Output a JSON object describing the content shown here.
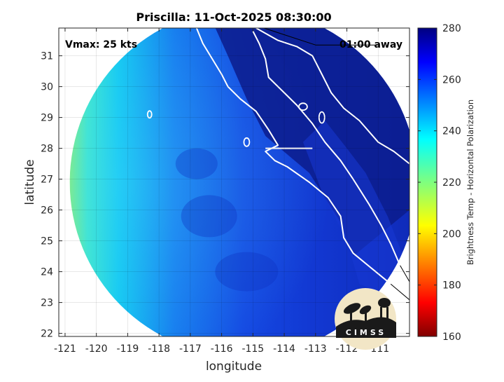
{
  "chart_data": {
    "type": "heatmap",
    "title": "Priscilla: 11-Oct-2025 08:30:00",
    "xlabel": "longitude",
    "ylabel": "latitude",
    "xlim": [
      -121.2,
      -110.0
    ],
    "ylim": [
      21.9,
      31.9
    ],
    "x_ticks": [
      -121,
      -120,
      -119,
      -118,
      -117,
      -116,
      -115,
      -114,
      -113,
      -112,
      -111
    ],
    "y_ticks": [
      22,
      23,
      24,
      25,
      26,
      27,
      28,
      29,
      30,
      31
    ],
    "grid": true,
    "annotations": {
      "vmax": "Vmax: 25 kts",
      "time_away": "01:00 away"
    },
    "colorbar": {
      "label": "Brightness Temp - Horizontal Polarization",
      "range": [
        160,
        280
      ],
      "ticks": [
        280,
        260,
        240,
        220,
        200,
        180,
        160
      ],
      "colormap": "jet",
      "placement": "right"
    },
    "swath": {
      "shape": "circle",
      "center": [
        -115.3,
        26.9
      ],
      "radius_deg": 5.55,
      "value_range": [
        218,
        272
      ]
    },
    "logo": "CIMSS"
  }
}
